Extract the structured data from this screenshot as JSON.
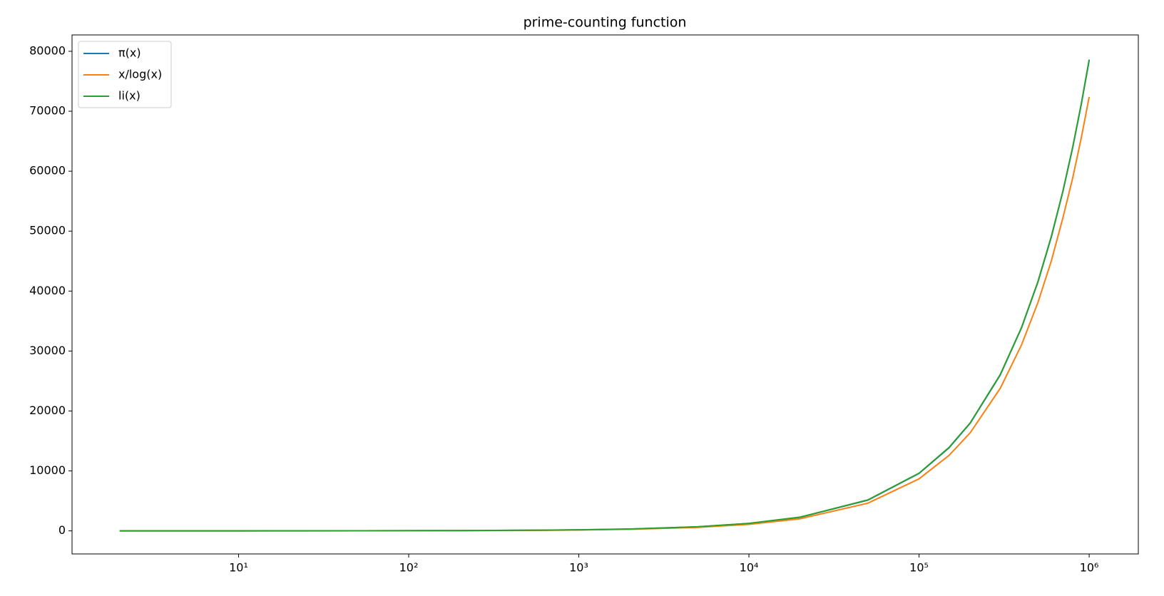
{
  "chart_data": {
    "type": "line",
    "title": "prime-counting function",
    "x": [
      2,
      5,
      10,
      20,
      50,
      100,
      200,
      500,
      1000,
      2000,
      5000,
      10000,
      20000,
      50000,
      100000,
      150000,
      200000,
      300000,
      400000,
      500000,
      600000,
      700000,
      800000,
      900000,
      1000000
    ],
    "series": [
      {
        "name": "π(x)",
        "color": "#1f77b4",
        "values": [
          1,
          3,
          4,
          8,
          15,
          25,
          46,
          95,
          168,
          303,
          669,
          1229,
          2262,
          5133,
          9592,
          13848,
          17984,
          25997,
          33860,
          41538,
          49098,
          56543,
          63951,
          71274,
          78498
        ]
      },
      {
        "name": "x/log(x)",
        "color": "#ff7f0e",
        "values": [
          2.885,
          3.107,
          4.343,
          6.676,
          12.78,
          21.71,
          37.75,
          80.45,
          144.8,
          263.1,
          587.0,
          1085.7,
          2019.8,
          4621.2,
          8685.9,
          12585,
          16385,
          23780,
          31007,
          38103,
          45097,
          52158,
          58872,
          65670,
          72382
        ]
      },
      {
        "name": "li(x)",
        "color": "#2ca02c",
        "values": [
          1.045,
          3.63,
          6.17,
          9.9,
          18.9,
          30.1,
          50.2,
          101.8,
          177.6,
          314.8,
          684.3,
          1246.1,
          2288,
          5166,
          9630,
          13914,
          18036,
          26068,
          33911,
          41606,
          49197,
          56606,
          64008,
          71353,
          78628
        ]
      }
    ],
    "xscale": "log",
    "xlim": [
      1.05,
      1945000
    ],
    "ylim": [
      -3850,
      82730
    ],
    "xticks": [
      {
        "value": 10,
        "label": "10¹"
      },
      {
        "value": 100,
        "label": "10²"
      },
      {
        "value": 1000,
        "label": "10³"
      },
      {
        "value": 10000,
        "label": "10⁴"
      },
      {
        "value": 100000,
        "label": "10⁵"
      },
      {
        "value": 1000000,
        "label": "10⁶"
      }
    ],
    "yticks": [
      0,
      10000,
      20000,
      30000,
      40000,
      50000,
      60000,
      70000,
      80000
    ],
    "legend": "upper left"
  }
}
